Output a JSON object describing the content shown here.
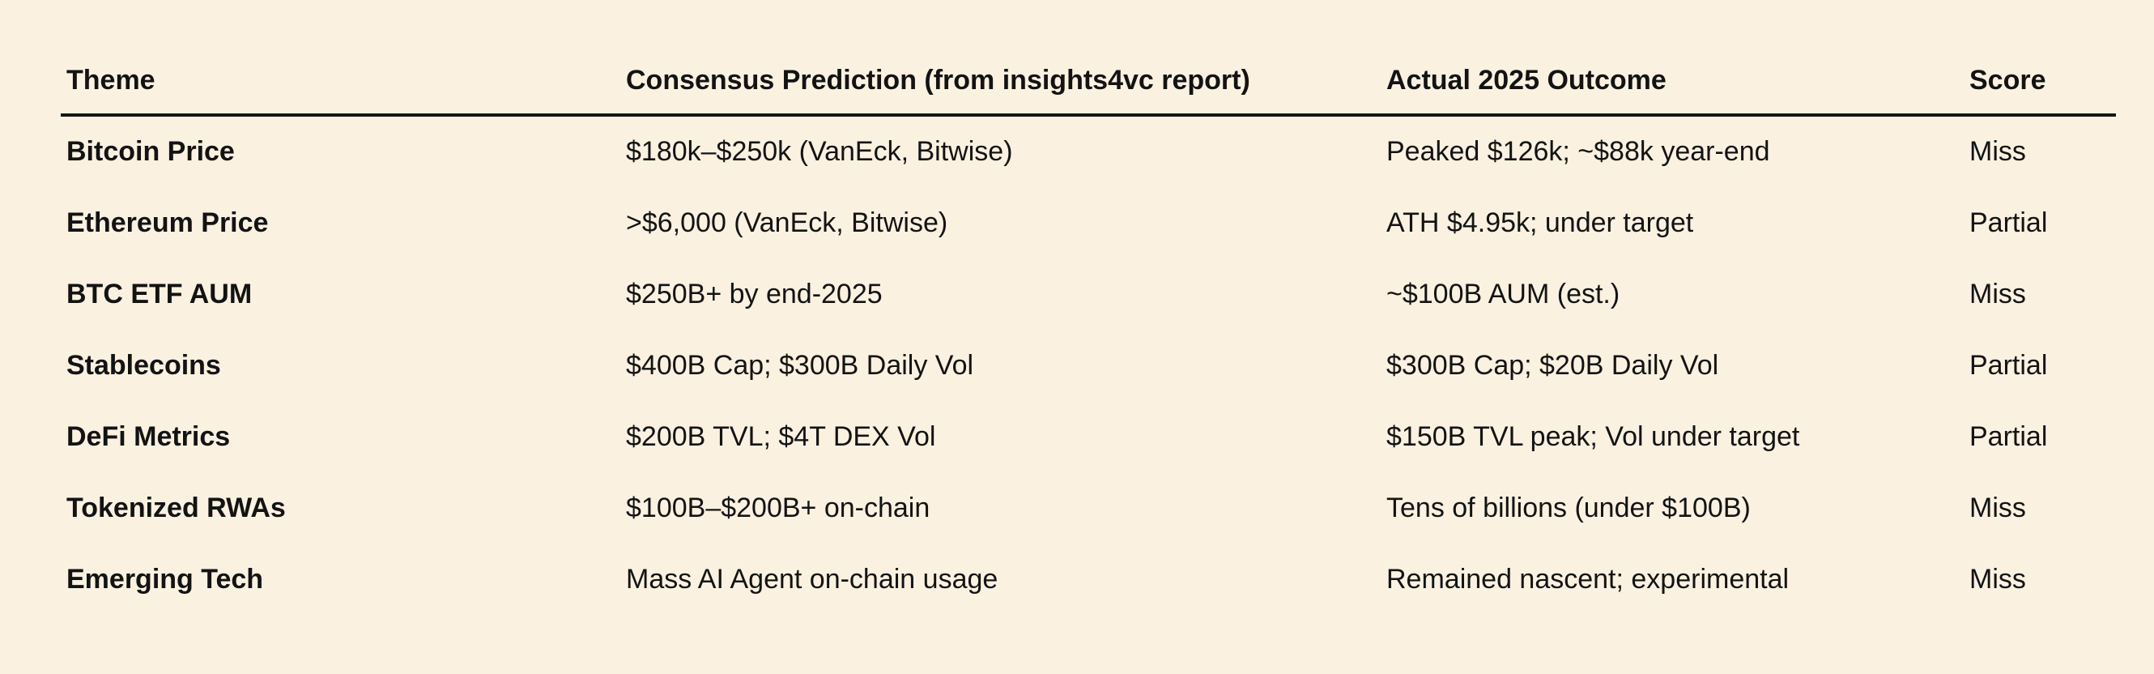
{
  "page": {
    "background_color": "#fbf1e1",
    "text_color": "#131313",
    "rule_color": "#161616"
  },
  "table": {
    "columns": [
      {
        "key": "theme",
        "label": "Theme"
      },
      {
        "key": "prediction",
        "label": "Consensus Prediction (from insights4vc report)"
      },
      {
        "key": "outcome",
        "label": "Actual 2025 Outcome"
      },
      {
        "key": "score",
        "label": "Score"
      }
    ],
    "rows": [
      {
        "theme": "Bitcoin Price",
        "prediction": "$180k–$250k (VanEck, Bitwise)",
        "outcome": "Peaked $126k; ~$88k year-end",
        "score": "Miss"
      },
      {
        "theme": "Ethereum Price",
        "prediction": ">$6,000 (VanEck, Bitwise)",
        "outcome": "ATH $4.95k; under target",
        "score": "Partial"
      },
      {
        "theme": "BTC ETF AUM",
        "prediction": "$250B+ by end-2025",
        "outcome": "~$100B AUM (est.)",
        "score": "Miss"
      },
      {
        "theme": "Stablecoins",
        "prediction": "$400B Cap; $300B Daily Vol",
        "outcome": "$300B Cap; $20B Daily Vol",
        "score": "Partial"
      },
      {
        "theme": "DeFi Metrics",
        "prediction": "$200B TVL; $4T DEX Vol",
        "outcome": "$150B TVL peak; Vol under target",
        "score": "Partial"
      },
      {
        "theme": "Tokenized RWAs",
        "prediction": "$100B–$200B+ on-chain",
        "outcome": "Tens of billions (under $100B)",
        "score": "Miss"
      },
      {
        "theme": "Emerging Tech",
        "prediction": "Mass AI Agent on-chain usage",
        "outcome": "Remained nascent; experimental",
        "score": "Miss"
      }
    ]
  }
}
